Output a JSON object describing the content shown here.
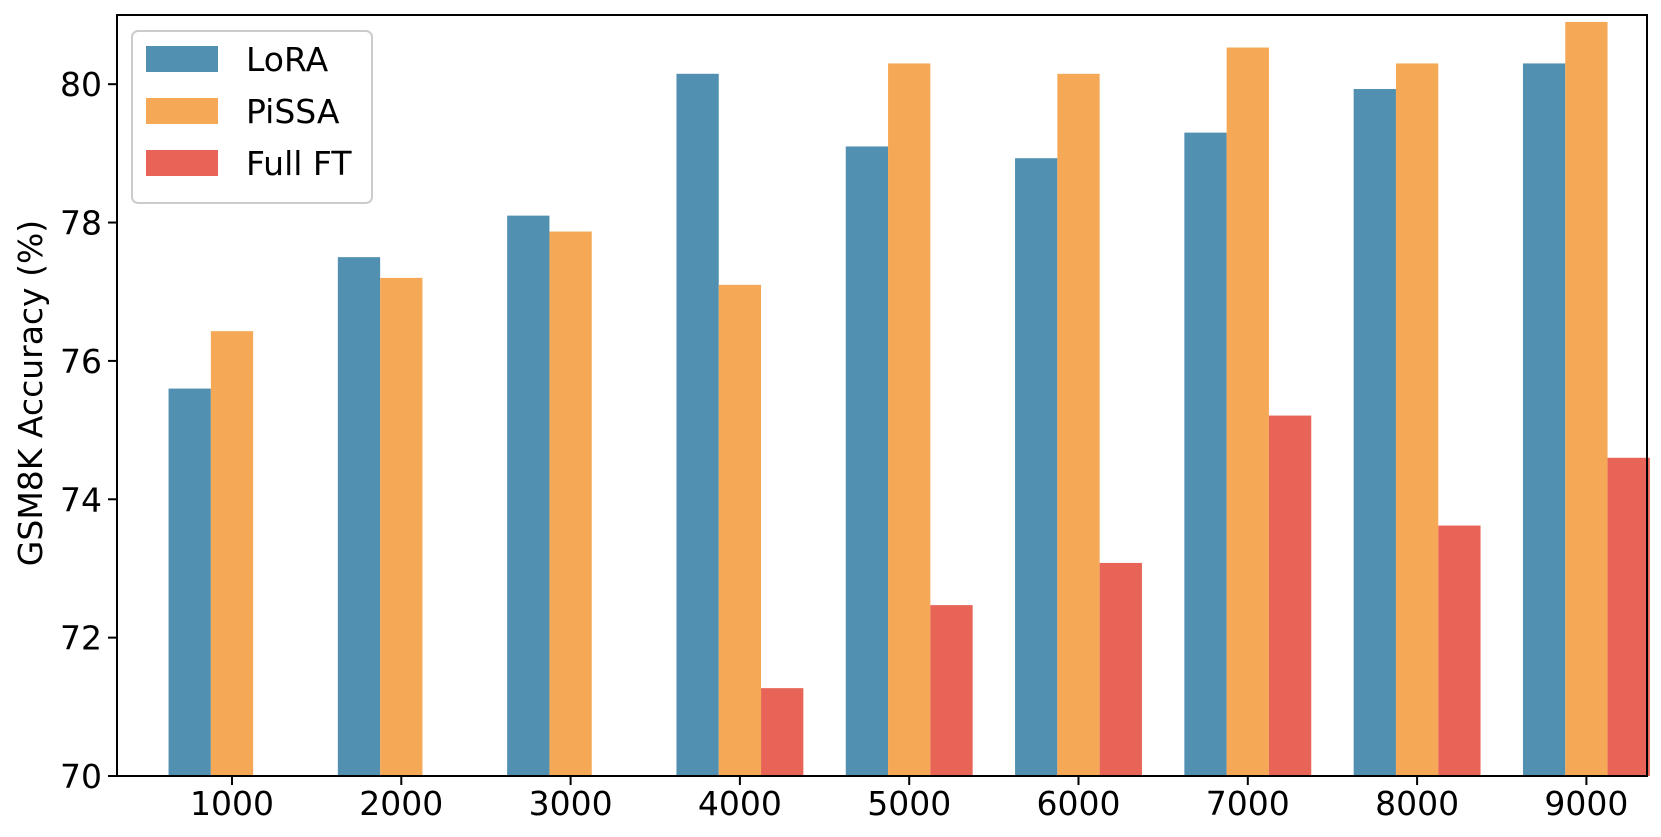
{
  "chart_data": {
    "type": "bar",
    "title": "",
    "xlabel": "",
    "ylabel": "GSM8K Accuracy (%)",
    "ylim": [
      70,
      81
    ],
    "yticks": [
      70,
      72,
      74,
      76,
      78,
      80
    ],
    "grid": false,
    "legend_position": "top-left",
    "categories": [
      "1000",
      "2000",
      "3000",
      "4000",
      "5000",
      "6000",
      "7000",
      "8000",
      "9000"
    ],
    "series": [
      {
        "name": "LoRA",
        "color": "#5190b0",
        "values": [
          75.6,
          77.5,
          78.1,
          80.15,
          79.1,
          78.93,
          79.3,
          79.93,
          80.3
        ]
      },
      {
        "name": "PiSSA",
        "color": "#f5a957",
        "values": [
          76.43,
          77.2,
          77.87,
          77.1,
          80.3,
          80.15,
          80.53,
          80.3,
          80.9
        ]
      },
      {
        "name": "Full FT",
        "color": "#e76456",
        "values": [
          null,
          null,
          null,
          71.27,
          72.47,
          73.08,
          75.21,
          73.62,
          74.6
        ]
      }
    ]
  }
}
